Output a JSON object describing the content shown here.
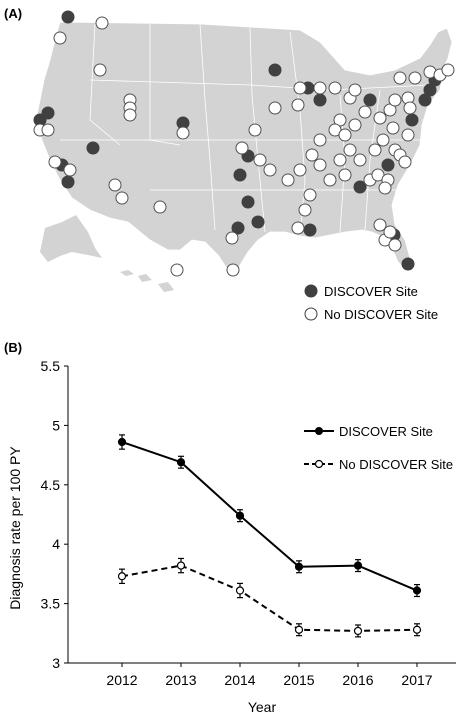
{
  "panel_a": {
    "label": "(A)",
    "legend": [
      {
        "label": "DISCOVER Site",
        "marker": "filled"
      },
      {
        "label": "No DISCOVER Site",
        "marker": "open"
      }
    ],
    "colors": {
      "land": "#d3d3d3",
      "site": "#404040",
      "no_site": "#ffffff",
      "border": "#ffffff"
    }
  },
  "panel_b": {
    "label": "(B)",
    "chart_data": {
      "type": "line",
      "title": "",
      "xlabel": "Year",
      "ylabel": "Diagnosis rate per 100 PY",
      "categories": [
        "2012",
        "2013",
        "2014",
        "2015",
        "2016",
        "2017"
      ],
      "ylim": [
        3,
        5.5
      ],
      "yticks": [
        "3",
        "3.5",
        "4",
        "4.5",
        "5",
        "5.5"
      ],
      "legend_position": "top-right",
      "grid": false,
      "series": [
        {
          "name": "DISCOVER Site",
          "values": [
            4.86,
            4.69,
            4.24,
            3.81,
            3.82,
            3.61
          ],
          "errors": [
            0.06,
            0.05,
            0.05,
            0.05,
            0.05,
            0.05
          ],
          "line": "solid",
          "marker": "filled"
        },
        {
          "name": "No DISCOVER Site",
          "values": [
            3.73,
            3.82,
            3.61,
            3.28,
            3.27,
            3.28
          ],
          "errors": [
            0.06,
            0.06,
            0.06,
            0.05,
            0.05,
            0.05
          ],
          "line": "dashed",
          "marker": "open"
        }
      ]
    }
  }
}
